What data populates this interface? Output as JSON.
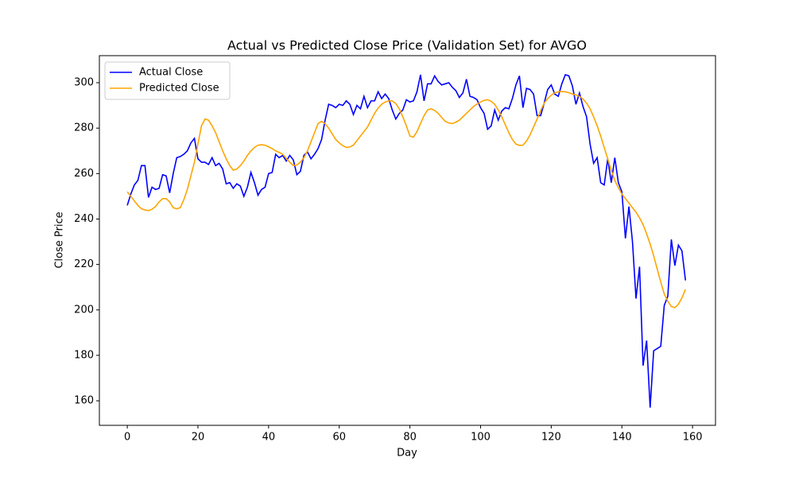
{
  "chart_data": {
    "type": "line",
    "title": "Actual vs Predicted Close Price (Validation Set) for AVGO",
    "xlabel": "Day",
    "ylabel": "Close Price",
    "x": [
      0,
      1,
      2,
      3,
      4,
      5,
      6,
      7,
      8,
      9,
      10,
      11,
      12,
      13,
      14,
      15,
      16,
      17,
      18,
      19,
      20,
      21,
      22,
      23,
      24,
      25,
      26,
      27,
      28,
      29,
      30,
      31,
      32,
      33,
      34,
      35,
      36,
      37,
      38,
      39,
      40,
      41,
      42,
      43,
      44,
      45,
      46,
      47,
      48,
      49,
      50,
      51,
      52,
      53,
      54,
      55,
      56,
      57,
      58,
      59,
      60,
      61,
      62,
      63,
      64,
      65,
      66,
      67,
      68,
      69,
      70,
      71,
      72,
      73,
      74,
      75,
      76,
      77,
      78,
      79,
      80,
      81,
      82,
      83,
      84,
      85,
      86,
      87,
      88,
      89,
      90,
      91,
      92,
      93,
      94,
      95,
      96,
      97,
      98,
      99,
      100,
      101,
      102,
      103,
      104,
      105,
      106,
      107,
      108,
      109,
      110,
      111,
      112,
      113,
      114,
      115,
      116,
      117,
      118,
      119,
      120,
      121,
      122,
      123,
      124,
      125,
      126,
      127,
      128,
      129,
      130,
      131,
      132,
      133,
      134,
      135,
      136,
      137,
      138,
      139,
      140,
      141,
      142,
      143,
      144,
      145,
      146,
      147,
      148,
      149,
      150,
      151,
      152,
      153,
      154,
      155,
      156,
      157,
      158
    ],
    "series": [
      {
        "name": "Actual Close",
        "color": "#0000ff",
        "values": [
          246,
          251,
          255,
          257,
          263.5,
          263.5,
          249.5,
          254,
          253,
          253.5,
          259.5,
          259,
          251.5,
          260,
          267,
          267.5,
          268.5,
          270,
          273.5,
          275.5,
          266.5,
          265,
          265,
          264,
          267,
          263.5,
          264.5,
          262,
          255.5,
          256,
          253.5,
          255.5,
          254.5,
          250,
          254,
          260.5,
          256,
          250.5,
          253,
          254,
          260,
          260.5,
          268.5,
          267,
          268,
          265.5,
          268,
          266,
          259.5,
          261,
          268,
          269.5,
          266.5,
          268.5,
          271,
          275,
          283.5,
          290.5,
          290,
          289,
          290.5,
          290,
          292,
          290.5,
          286,
          290,
          288.5,
          294,
          289,
          292,
          292,
          296,
          293,
          295,
          293,
          288,
          284,
          286.5,
          288,
          292.5,
          291.5,
          292,
          296,
          303.5,
          292,
          299.5,
          299.5,
          303,
          300.5,
          299,
          299.5,
          300,
          298,
          296.5,
          293.5,
          295.5,
          301.5,
          294,
          293.5,
          292.5,
          289,
          286.5,
          279.5,
          281,
          288,
          283.5,
          287.5,
          289,
          288.5,
          293,
          299,
          303,
          289,
          297.5,
          297,
          295,
          285.5,
          285.5,
          291,
          297,
          299,
          295,
          294,
          299.5,
          303.5,
          303,
          298.5,
          290.5,
          295.5,
          289.5,
          285,
          273,
          264.5,
          267,
          256,
          255,
          266.5,
          256,
          267,
          256,
          252,
          231.5,
          245.5,
          230,
          205,
          219,
          175.5,
          186.5,
          157,
          182,
          183,
          184,
          202,
          206,
          231,
          219.5,
          228.5,
          226,
          213
        ]
      },
      {
        "name": "Predicted Close",
        "color": "#ffa500",
        "values": [
          252,
          250,
          248,
          246,
          244.5,
          244,
          243.7,
          244.3,
          245.5,
          247.5,
          249,
          249,
          247.5,
          245,
          244.5,
          245,
          248.5,
          253,
          259,
          265,
          273,
          281,
          284,
          283.5,
          281,
          278,
          274,
          270,
          266.5,
          263.5,
          261.5,
          262,
          263.5,
          265.5,
          268,
          270,
          271.5,
          272.5,
          272.7,
          272.5,
          271.8,
          271,
          270,
          269.3,
          268.5,
          266.7,
          265,
          263.5,
          263.8,
          265,
          267,
          270,
          274,
          278,
          282,
          283,
          282,
          280,
          277.5,
          275,
          273.5,
          272.3,
          271.5,
          271.7,
          272.5,
          274.5,
          276.5,
          278.5,
          280.5,
          283.5,
          286.5,
          288.8,
          290.5,
          291.5,
          292,
          292,
          290.8,
          288.5,
          285,
          281,
          276.5,
          276,
          278.5,
          282,
          285.5,
          288,
          288.5,
          287.8,
          286.5,
          284.7,
          283,
          282.3,
          282,
          282.6,
          283.5,
          285,
          286.5,
          288,
          289.5,
          290.6,
          291.5,
          292.2,
          292.5,
          291.8,
          290.5,
          288,
          285,
          281.5,
          278,
          275,
          273,
          272.4,
          272.5,
          274.3,
          277,
          280.5,
          284,
          287.7,
          291,
          293,
          294.5,
          295.5,
          296,
          296.1,
          296,
          295.6,
          295,
          294.6,
          294,
          292.8,
          291,
          288.5,
          285,
          281,
          276.5,
          271.5,
          266.5,
          261.5,
          257,
          253.8,
          251,
          249,
          247,
          245,
          243,
          240.5,
          237.5,
          233.5,
          229,
          223.8,
          218,
          212.3,
          207,
          203.8,
          201.5,
          201,
          202.5,
          205.3,
          209
        ]
      }
    ],
    "xlim": [
      -7.9,
      166.5
    ],
    "ylim": [
      149.2,
      311.9
    ],
    "xticks": [
      0,
      20,
      40,
      60,
      80,
      100,
      120,
      140,
      160
    ],
    "yticks": [
      160,
      180,
      200,
      220,
      240,
      260,
      280,
      300
    ],
    "grid": false,
    "legend": "upper left"
  }
}
